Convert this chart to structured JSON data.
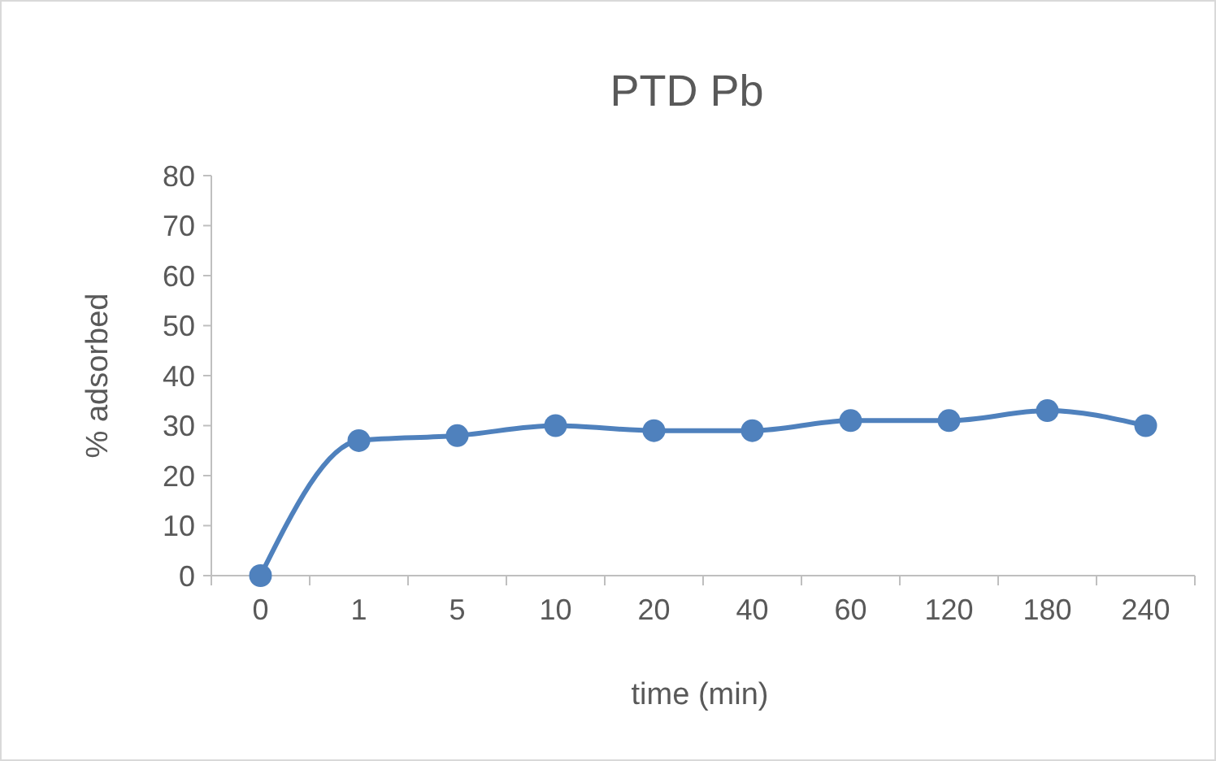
{
  "chart_data": {
    "type": "line",
    "title": "PTD Pb",
    "xlabel": "time (min)",
    "ylabel": "% adsorbed",
    "categories": [
      "0",
      "1",
      "5",
      "10",
      "20",
      "40",
      "60",
      "120",
      "180",
      "240"
    ],
    "series": [
      {
        "color": "#4f81bd",
        "values": [
          0,
          27,
          28,
          30,
          29,
          29,
          31,
          31,
          33,
          30
        ]
      }
    ],
    "ylim": [
      0,
      80
    ],
    "yticks": [
      0,
      10,
      20,
      30,
      40,
      50,
      60,
      70,
      80
    ],
    "marker": "circle",
    "line_style": "solid"
  }
}
